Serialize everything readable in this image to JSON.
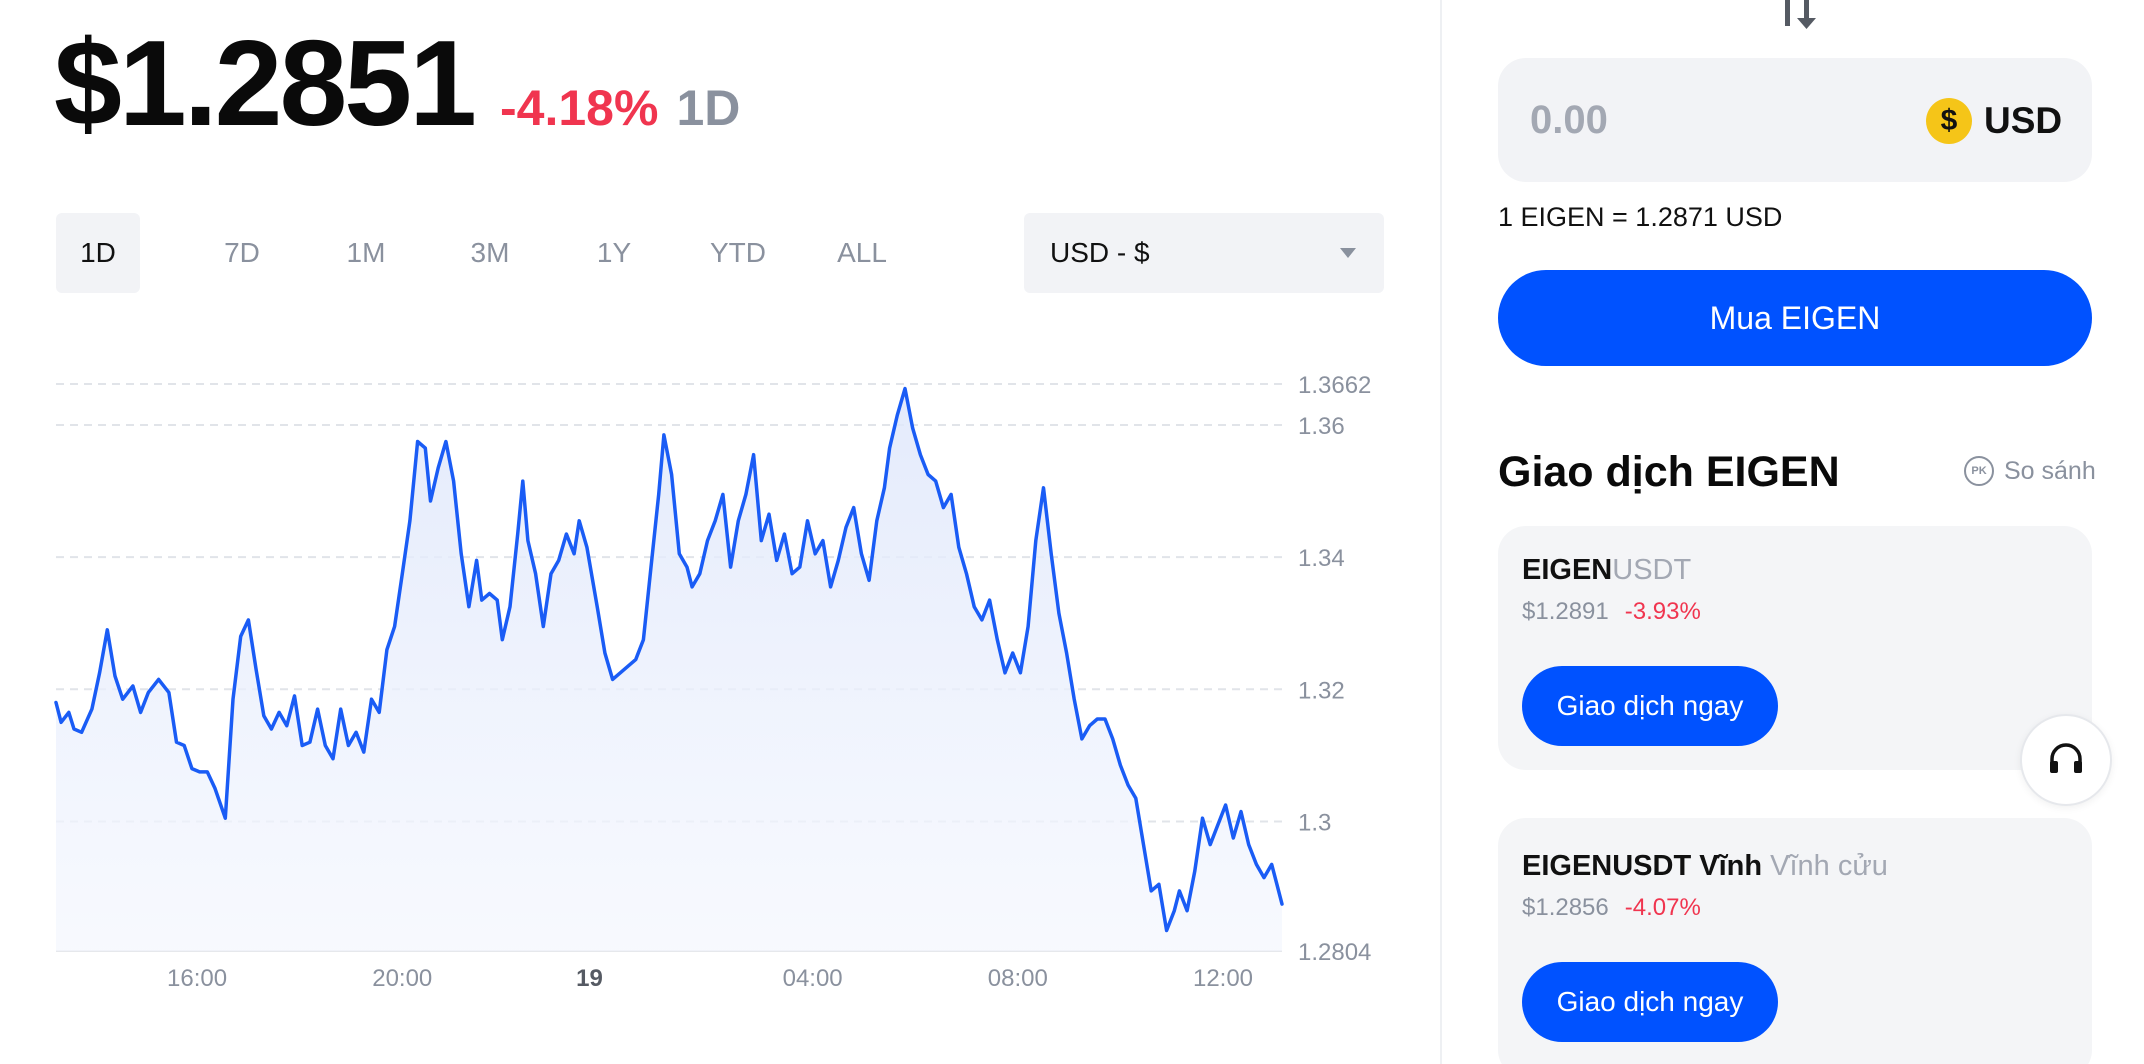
{
  "header": {
    "price": "$1.2851",
    "change": "-4.18%",
    "period": "1D"
  },
  "colors": {
    "negative": "#f0354f",
    "accent": "#0052ff",
    "line": "#1a5cf5",
    "coin": "#f5c518"
  },
  "range_tabs": [
    {
      "label": "1D",
      "active": true
    },
    {
      "label": "7D",
      "active": false
    },
    {
      "label": "1M",
      "active": false
    },
    {
      "label": "3M",
      "active": false
    },
    {
      "label": "1Y",
      "active": false
    },
    {
      "label": "YTD",
      "active": false
    },
    {
      "label": "ALL",
      "active": false
    }
  ],
  "currency_select": {
    "value": "USD - $",
    "icon": "chevron-down-icon"
  },
  "chart_data": {
    "type": "area",
    "title": "",
    "xlabel": "",
    "ylabel": "",
    "x_ticks": [
      {
        "label": "16:00",
        "t": 16,
        "bold": false
      },
      {
        "label": "20:00",
        "t": 20,
        "bold": false
      },
      {
        "label": "19",
        "t": 23.65,
        "bold": true
      },
      {
        "label": "04:00",
        "t": 28,
        "bold": false
      },
      {
        "label": "08:00",
        "t": 32,
        "bold": false
      },
      {
        "label": "12:00",
        "t": 36,
        "bold": false
      }
    ],
    "y_ticks": [
      "1.3662",
      "1.36",
      "1.34",
      "1.32",
      "1.3",
      "1.2804"
    ],
    "y_tick_values": [
      1.3662,
      1.36,
      1.34,
      1.32,
      1.3,
      1.2804
    ],
    "ylim": [
      1.2804,
      1.3662
    ],
    "xlim": [
      13.25,
      37.15
    ],
    "grid": true,
    "series": [
      {
        "color": "#1a5cf5",
        "points": [
          [
            13.25,
            1.318
          ],
          [
            13.35,
            1.315
          ],
          [
            13.5,
            1.3165
          ],
          [
            13.6,
            1.314
          ],
          [
            13.75,
            1.3135
          ],
          [
            13.95,
            1.317
          ],
          [
            14.1,
            1.3225
          ],
          [
            14.25,
            1.329
          ],
          [
            14.4,
            1.322
          ],
          [
            14.55,
            1.3185
          ],
          [
            14.75,
            1.3205
          ],
          [
            14.9,
            1.3165
          ],
          [
            15.05,
            1.3195
          ],
          [
            15.25,
            1.3215
          ],
          [
            15.45,
            1.3195
          ],
          [
            15.6,
            1.312
          ],
          [
            15.75,
            1.3115
          ],
          [
            15.9,
            1.308
          ],
          [
            16.05,
            1.3075
          ],
          [
            16.2,
            1.3075
          ],
          [
            16.35,
            1.305
          ],
          [
            16.55,
            1.3005
          ],
          [
            16.7,
            1.3185
          ],
          [
            16.85,
            1.328
          ],
          [
            17.0,
            1.3305
          ],
          [
            17.15,
            1.323
          ],
          [
            17.3,
            1.316
          ],
          [
            17.45,
            1.314
          ],
          [
            17.6,
            1.3165
          ],
          [
            17.75,
            1.3145
          ],
          [
            17.9,
            1.319
          ],
          [
            18.05,
            1.3115
          ],
          [
            18.2,
            1.312
          ],
          [
            18.35,
            1.317
          ],
          [
            18.5,
            1.3115
          ],
          [
            18.65,
            1.3095
          ],
          [
            18.8,
            1.317
          ],
          [
            18.95,
            1.3115
          ],
          [
            19.1,
            1.3135
          ],
          [
            19.25,
            1.3105
          ],
          [
            19.4,
            1.3185
          ],
          [
            19.55,
            1.3165
          ],
          [
            19.7,
            1.326
          ],
          [
            19.85,
            1.3295
          ],
          [
            20.0,
            1.3375
          ],
          [
            20.15,
            1.3455
          ],
          [
            20.3,
            1.3575
          ],
          [
            20.45,
            1.3565
          ],
          [
            20.55,
            1.3485
          ],
          [
            20.7,
            1.3535
          ],
          [
            20.85,
            1.3575
          ],
          [
            21.0,
            1.3515
          ],
          [
            21.15,
            1.3405
          ],
          [
            21.3,
            1.3325
          ],
          [
            21.45,
            1.3395
          ],
          [
            21.55,
            1.3335
          ],
          [
            21.7,
            1.3345
          ],
          [
            21.85,
            1.3335
          ],
          [
            21.95,
            1.3275
          ],
          [
            22.1,
            1.3325
          ],
          [
            22.25,
            1.3435
          ],
          [
            22.35,
            1.3515
          ],
          [
            22.45,
            1.3425
          ],
          [
            22.6,
            1.3375
          ],
          [
            22.75,
            1.3295
          ],
          [
            22.9,
            1.3375
          ],
          [
            23.05,
            1.3395
          ],
          [
            23.2,
            1.3435
          ],
          [
            23.35,
            1.3405
          ],
          [
            23.45,
            1.3455
          ],
          [
            23.6,
            1.3415
          ],
          [
            23.8,
            1.3325
          ],
          [
            23.95,
            1.3255
          ],
          [
            24.1,
            1.3215
          ],
          [
            24.25,
            1.3225
          ],
          [
            24.4,
            1.3235
          ],
          [
            24.55,
            1.3245
          ],
          [
            24.7,
            1.3275
          ],
          [
            24.85,
            1.3385
          ],
          [
            25.0,
            1.3495
          ],
          [
            25.1,
            1.3585
          ],
          [
            25.25,
            1.3525
          ],
          [
            25.4,
            1.3405
          ],
          [
            25.55,
            1.3385
          ],
          [
            25.65,
            1.3355
          ],
          [
            25.8,
            1.3375
          ],
          [
            25.95,
            1.3425
          ],
          [
            26.1,
            1.3455
          ],
          [
            26.25,
            1.3495
          ],
          [
            26.4,
            1.3385
          ],
          [
            26.55,
            1.3455
          ],
          [
            26.7,
            1.3495
          ],
          [
            26.85,
            1.3555
          ],
          [
            27.0,
            1.3425
          ],
          [
            27.15,
            1.3465
          ],
          [
            27.3,
            1.3395
          ],
          [
            27.45,
            1.3435
          ],
          [
            27.6,
            1.3375
          ],
          [
            27.75,
            1.3385
          ],
          [
            27.9,
            1.3455
          ],
          [
            28.05,
            1.3405
          ],
          [
            28.2,
            1.3425
          ],
          [
            28.35,
            1.3355
          ],
          [
            28.5,
            1.3395
          ],
          [
            28.65,
            1.3445
          ],
          [
            28.8,
            1.3475
          ],
          [
            28.95,
            1.3405
          ],
          [
            29.1,
            1.3365
          ],
          [
            29.25,
            1.3455
          ],
          [
            29.4,
            1.3505
          ],
          [
            29.5,
            1.3565
          ],
          [
            29.65,
            1.3615
          ],
          [
            29.8,
            1.3655
          ],
          [
            29.95,
            1.3595
          ],
          [
            30.1,
            1.3555
          ],
          [
            30.25,
            1.3525
          ],
          [
            30.4,
            1.3515
          ],
          [
            30.55,
            1.3475
          ],
          [
            30.7,
            1.3495
          ],
          [
            30.85,
            1.3415
          ],
          [
            31.0,
            1.3375
          ],
          [
            31.15,
            1.3325
          ],
          [
            31.3,
            1.3305
          ],
          [
            31.45,
            1.3335
          ],
          [
            31.6,
            1.3275
          ],
          [
            31.75,
            1.3225
          ],
          [
            31.9,
            1.3255
          ],
          [
            32.05,
            1.3225
          ],
          [
            32.2,
            1.3295
          ],
          [
            32.35,
            1.3425
          ],
          [
            32.5,
            1.3505
          ],
          [
            32.65,
            1.3405
          ],
          [
            32.8,
            1.3315
          ],
          [
            32.95,
            1.3255
          ],
          [
            33.1,
            1.3185
          ],
          [
            33.25,
            1.3125
          ],
          [
            33.4,
            1.3145
          ],
          [
            33.55,
            1.3155
          ],
          [
            33.7,
            1.3155
          ],
          [
            33.85,
            1.3125
          ],
          [
            34.0,
            1.3085
          ],
          [
            34.15,
            1.3055
          ],
          [
            34.3,
            1.3035
          ],
          [
            34.45,
            1.2965
          ],
          [
            34.6,
            1.2895
          ],
          [
            34.75,
            1.2905
          ],
          [
            34.9,
            1.2835
          ],
          [
            35.05,
            1.2865
          ],
          [
            35.15,
            1.2895
          ],
          [
            35.3,
            1.2865
          ],
          [
            35.45,
            1.2925
          ],
          [
            35.6,
            1.3005
          ],
          [
            35.75,
            1.2965
          ],
          [
            35.9,
            1.2995
          ],
          [
            36.05,
            1.3025
          ],
          [
            36.2,
            1.2975
          ],
          [
            36.35,
            1.3015
          ],
          [
            36.5,
            1.2965
          ],
          [
            36.65,
            1.2935
          ],
          [
            36.8,
            1.2915
          ],
          [
            36.95,
            1.2935
          ],
          [
            37.05,
            1.2905
          ],
          [
            37.15,
            1.2875
          ]
        ]
      }
    ]
  },
  "converter": {
    "swap_icon": "swap-arrows-icon",
    "amount_placeholder": "0.00",
    "coin_symbol": "$",
    "currency": "USD",
    "rate": "1 EIGEN = 1.2871 USD",
    "buy_label": "Mua EIGEN"
  },
  "trade_section": {
    "title": "Giao dịch EIGEN",
    "compare_badge": "PK",
    "compare_label": "So sánh",
    "cards": [
      {
        "pair_base": "EIGEN",
        "pair_quote": "USDT",
        "price": "$1.2891",
        "change": "-3.93%",
        "button": "Giao dịch ngay"
      },
      {
        "pair_base": "EIGENUSDT Vĩnh",
        "pair_quote": "Vĩnh cửu",
        "price": "$1.2856",
        "change": "-4.07%",
        "button": "Giao dịch ngay"
      }
    ]
  },
  "support": {
    "icon": "headset-icon"
  }
}
